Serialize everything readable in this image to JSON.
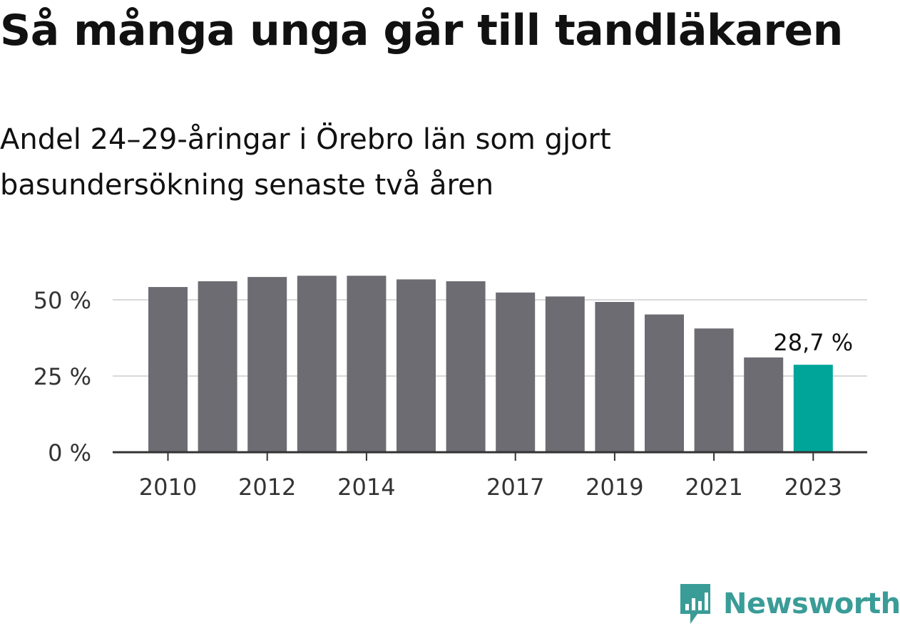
{
  "title": "Så många unga går till tandläkaren",
  "subtitle": "Andel 24–29-åringar i Örebro län som gjort basundersökning senaste två åren",
  "brand": {
    "name": "Newsworthy",
    "color": "#3a9c97",
    "icon": "bar-chart-bubble-icon"
  },
  "colors": {
    "bar": "#6d6c72",
    "highlight": "#00a59a",
    "grid": "#d9d9d9",
    "axis": "#333333"
  },
  "chart_data": {
    "type": "bar",
    "title": "Så många unga går till tandläkaren",
    "subtitle": "Andel 24–29-åringar i Örebro län som gjort basundersökning senaste två åren",
    "categories": [
      "2010",
      "2011",
      "2012",
      "2013",
      "2014",
      "2015",
      "2016",
      "2017",
      "2018",
      "2019",
      "2020",
      "2021",
      "2022",
      "2023"
    ],
    "values": [
      54.2,
      56.1,
      57.5,
      57.9,
      57.9,
      56.7,
      56.1,
      52.4,
      51.1,
      49.3,
      45.2,
      40.6,
      31.1,
      28.7
    ],
    "highlight_index": 13,
    "highlight_label": "28,7 %",
    "x_tick_labels": [
      "2010",
      "2012",
      "2014",
      "2017",
      "2019",
      "2021",
      "2023"
    ],
    "y_ticks": [
      0,
      25,
      50
    ],
    "y_tick_labels": [
      "0 %",
      "25 %",
      "50 %"
    ],
    "ylim": [
      0,
      60
    ],
    "grid": true,
    "xlabel": "",
    "ylabel": ""
  }
}
